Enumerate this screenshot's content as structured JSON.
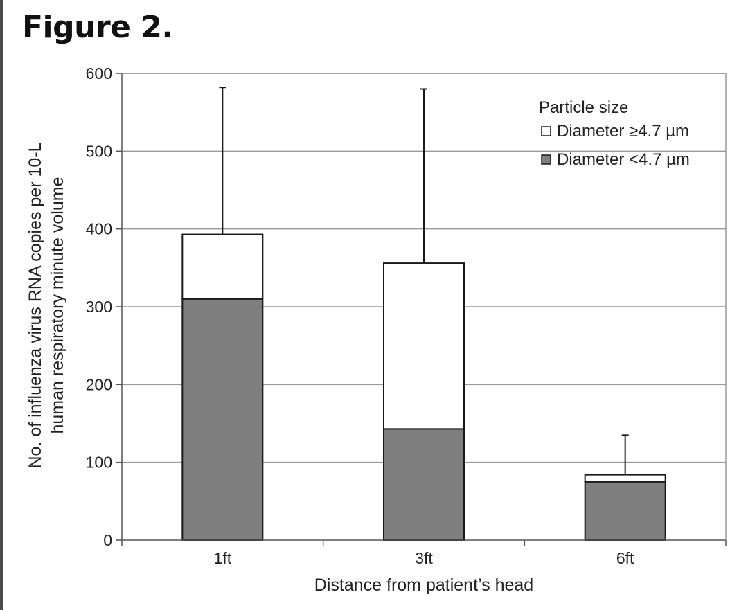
{
  "figure_label": "Figure 2.",
  "chart_data": {
    "type": "bar",
    "stacked": true,
    "categories": [
      "1ft",
      "3ft",
      "6ft"
    ],
    "series": [
      {
        "name": "Diameter <4.7 µm",
        "values": [
          310,
          143,
          75
        ],
        "color": "#7f7f7f"
      },
      {
        "name": "Diameter ≥4.7 µm",
        "values": [
          83,
          213,
          9
        ],
        "color": "#ffffff"
      }
    ],
    "error_bar_tops": [
      582,
      580,
      135
    ],
    "xlabel": "Distance from patient’s head",
    "ylabel_lines": [
      "No. of influenza virus RNA copies per 10-L",
      "human respiratory minute volume"
    ],
    "ylim": [
      0,
      600
    ],
    "yticks": [
      0,
      100,
      200,
      300,
      400,
      500,
      600
    ],
    "grid": true,
    "legend": {
      "title": "Particle size",
      "placement": "top-right",
      "order": [
        "Diameter ≥4.7 µm",
        "Diameter <4.7 µm"
      ]
    }
  }
}
